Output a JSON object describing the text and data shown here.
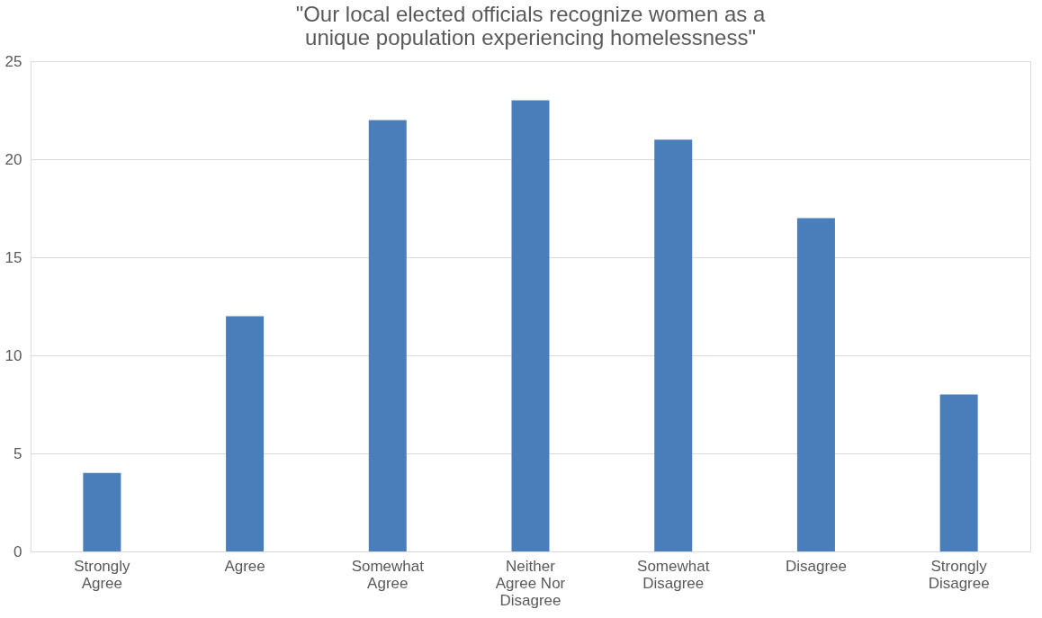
{
  "chart_data": {
    "type": "bar",
    "title": "\"Our local elected officials recognize women as a unique population experiencing homelessness\"",
    "categories": [
      "Strongly Agree",
      "Agree",
      "Somewhat Agree",
      "Neither Agree Nor Disagree",
      "Somewhat Disagree",
      "Disagree",
      "Strongly Disagree"
    ],
    "values": [
      4,
      12,
      22,
      23,
      21,
      17,
      8
    ],
    "color": "#4a7ebb",
    "ylim": [
      0,
      25
    ],
    "yticks": [
      0,
      5,
      10,
      15,
      20,
      25
    ],
    "grid": "y"
  }
}
